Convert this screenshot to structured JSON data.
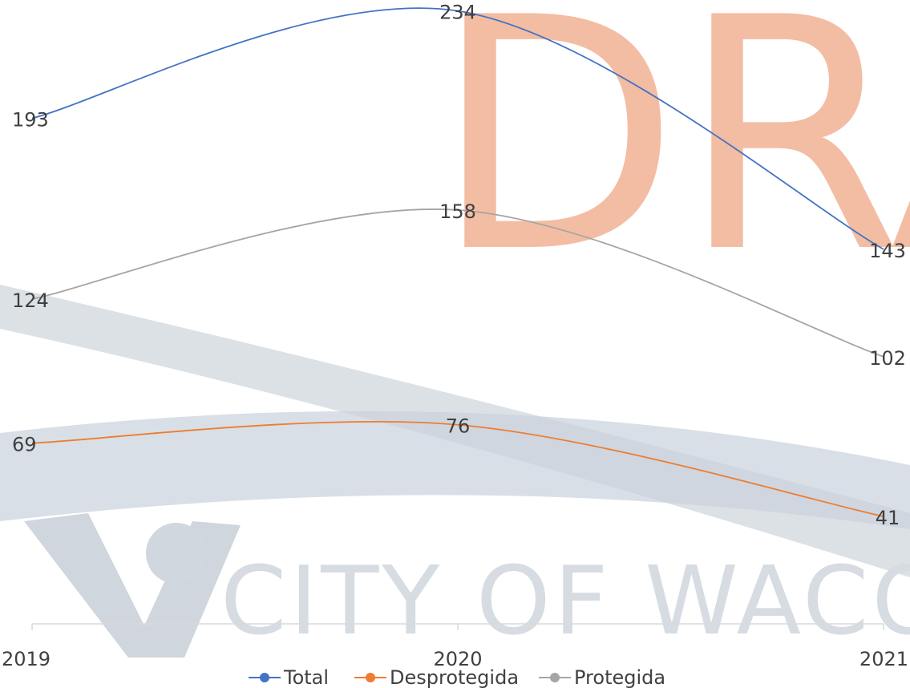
{
  "chart_data": {
    "type": "line",
    "watermark": "DRAFT",
    "background_text": "CITY OF WACO",
    "categories": [
      "2019",
      "2020",
      "2021"
    ],
    "series": [
      {
        "name": "Total",
        "color": "#4472c4",
        "values": [
          193,
          234,
          143
        ]
      },
      {
        "name": "Desprotegida",
        "color": "#ed7d31",
        "values": [
          69,
          76,
          41
        ]
      },
      {
        "name": "Protegida",
        "color": "#a5a5a5",
        "values": [
          124,
          158,
          102
        ]
      }
    ],
    "ylim": [
      0,
      240
    ],
    "smooth": true,
    "data_labels": true,
    "legend": "bottom"
  }
}
